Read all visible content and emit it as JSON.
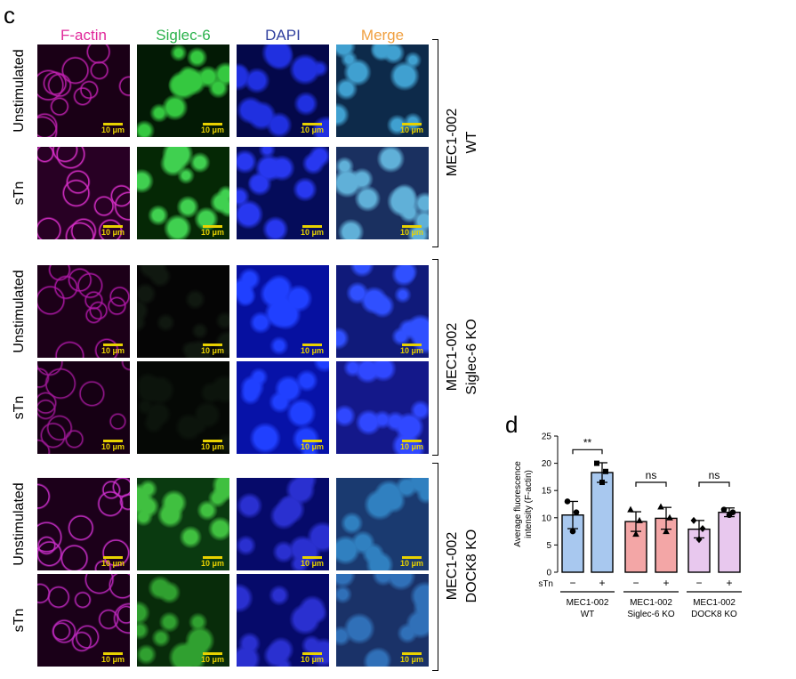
{
  "panel_c": {
    "letter": "c",
    "columns": [
      {
        "label": "F-actin",
        "color": "#e0299b"
      },
      {
        "label": "Siglec-6",
        "color": "#2bb24c"
      },
      {
        "label": "DAPI",
        "color": "#2f3f9e"
      },
      {
        "label": "Merge",
        "color": "#f0a040"
      }
    ],
    "row_labels": [
      "Unstimulated",
      "sTn",
      "Unstimulated",
      "sTn",
      "Unstimulated",
      "sTn"
    ],
    "groups": [
      {
        "line1": "MEC1-002",
        "line2": "WT"
      },
      {
        "line1": "MEC1-002",
        "line2": "Siglec-6 KO"
      },
      {
        "line1": "MEC1-002",
        "line2": "DOCK8 KO"
      }
    ],
    "scale_bar": "10 μm"
  },
  "panel_d": {
    "letter": "d",
    "sTn_label": "sTn",
    "minus": "−",
    "plus": "+",
    "sig_labels": [
      "**",
      "ns",
      "ns"
    ],
    "group_labels": [
      {
        "line1": "MEC1-002",
        "line2": "WT"
      },
      {
        "line1": "MEC1-002",
        "line2": "Siglec-6 KO"
      },
      {
        "line1": "MEC1-002",
        "line2": "DOCK8 KO"
      }
    ]
  },
  "chart_data": {
    "type": "bar",
    "ylabel_line1": "Average fluorescence",
    "ylabel_line2": "intensity (F-actin)",
    "ylim": [
      0,
      25
    ],
    "yticks": [
      0,
      5,
      10,
      15,
      20,
      25
    ],
    "categories": [
      "WT −",
      "WT +",
      "Siglec-6 KO −",
      "Siglec-6 KO +",
      "DOCK8 KO −",
      "DOCK8 KO +"
    ],
    "values": [
      10.5,
      18.3,
      9.3,
      9.9,
      7.9,
      11.0
    ],
    "errors": [
      2.5,
      1.8,
      1.8,
      2.0,
      1.6,
      0.8
    ],
    "colors": [
      "#a8c8ef",
      "#a8c8ef",
      "#f3a6a6",
      "#f3a6a6",
      "#e8c8ee",
      "#e8c8ee"
    ],
    "points": [
      [
        13.0,
        11.0,
        7.5
      ],
      [
        20.0,
        18.5,
        16.5
      ],
      [
        11.5,
        9.5,
        7.0
      ],
      [
        12.0,
        10.0,
        7.5
      ],
      [
        9.5,
        8.0,
        6.0
      ],
      [
        11.5,
        11.0,
        10.5
      ]
    ],
    "markers": [
      "circle",
      "square",
      "triangle",
      "triangle",
      "diamond",
      "circle"
    ]
  }
}
